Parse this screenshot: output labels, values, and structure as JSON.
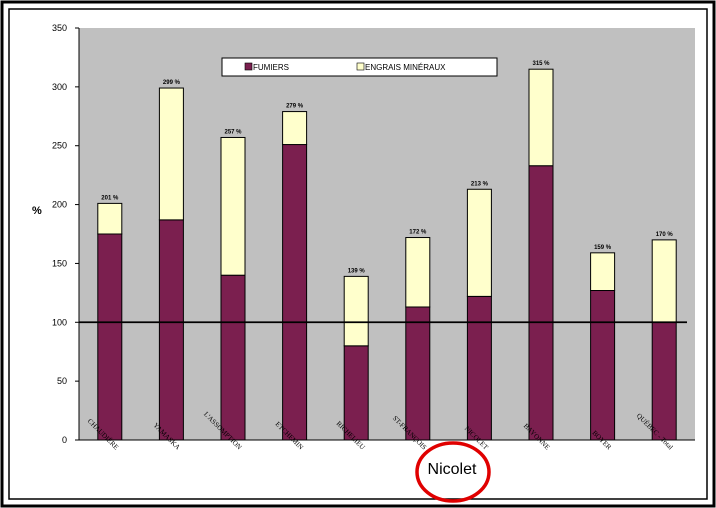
{
  "chart_data": {
    "type": "bar",
    "stacked": true,
    "ylabel": "%",
    "ylim": [
      0,
      350
    ],
    "yticks": [
      0,
      50,
      100,
      150,
      200,
      250,
      300,
      350
    ],
    "reference_line": 100,
    "grid": false,
    "legend_position": "top-center",
    "categories": [
      "CHAUDIÈRE",
      "YAMASKA",
      "L'ASSOMPTION",
      "ETCHEMIN",
      "RICHELIEU",
      "ST-FRANÇOIS",
      "NICOLET",
      "BAYONNE",
      "BOYER",
      "QUÉBEC - Total"
    ],
    "series": [
      {
        "name": "FUMIERS",
        "color": "#7b1f4f",
        "values": [
          175,
          187,
          140,
          251,
          80,
          113,
          122,
          233,
          127,
          100
        ]
      },
      {
        "name": "ENGRAIS MINÉRAUX",
        "color": "#ffffcc",
        "values": [
          26,
          112,
          117,
          28,
          59,
          59,
          91,
          82,
          32,
          70
        ]
      }
    ],
    "total_labels": [
      "201 %",
      "299 %",
      "257 %",
      "279 %",
      "139 %",
      "172 %",
      "213 %",
      "315 %",
      "159 %",
      "170 %"
    ],
    "annotation": "Nicolet"
  },
  "colors": {
    "plot_bg": "#c0c0c0",
    "fumiers": "#7b1f4f",
    "engrais": "#ffffcc",
    "annotation_circle": "#e00000"
  }
}
